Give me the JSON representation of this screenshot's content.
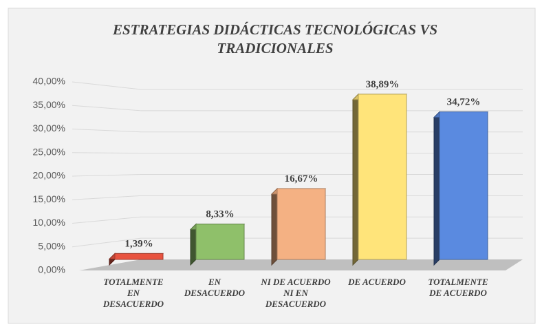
{
  "chart_data": {
    "type": "bar3d",
    "title": "ESTRATEGIAS DIDÁCTICAS TECNOLÓGICAS VS TRADICIONALES",
    "categories": [
      "TOTALMENTE EN DESACUERDO",
      "EN DESACUERDO",
      "NI DE ACUERDO NI EN DESACUERDO",
      "DE ACUERDO",
      "TOTALMENTE DE ACUERDO"
    ],
    "values": [
      1.39,
      8.33,
      16.67,
      38.89,
      34.72
    ],
    "value_labels": [
      "1,39%",
      "8,33%",
      "16,67%",
      "38,89%",
      "34,72%"
    ],
    "colors": [
      "#e8533f",
      "#8fc06a",
      "#f4b183",
      "#ffe47a",
      "#5a8ae0"
    ],
    "ylim": [
      0,
      40
    ],
    "yticks": [
      {
        "value": 0,
        "label": "0,00%"
      },
      {
        "value": 5,
        "label": "5,00%"
      },
      {
        "value": 10,
        "label": "10,00%"
      },
      {
        "value": 15,
        "label": "15,00%"
      },
      {
        "value": 20,
        "label": "20,00%"
      },
      {
        "value": 25,
        "label": "25,00%"
      },
      {
        "value": 30,
        "label": "30,00%"
      },
      {
        "value": 35,
        "label": "35,00%"
      },
      {
        "value": 40,
        "label": "40,00%"
      }
    ],
    "grid": true
  }
}
